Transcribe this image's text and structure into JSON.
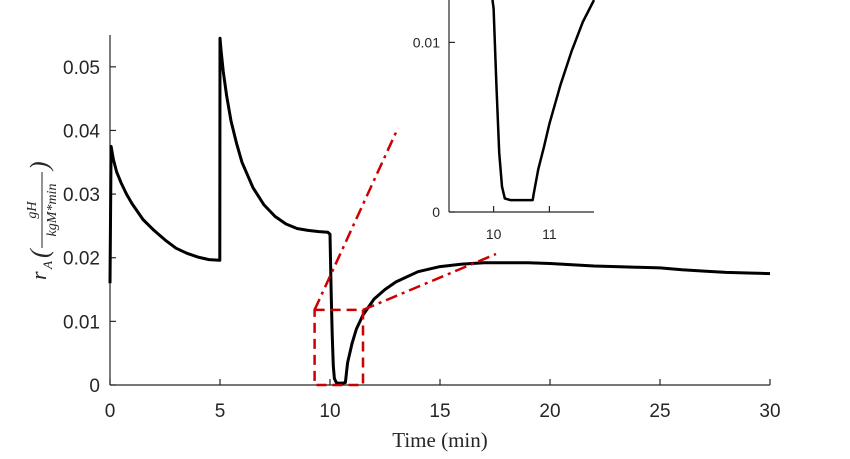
{
  "chart_data": [
    {
      "type": "line",
      "xlabel": "Time (min)",
      "ylabel": {
        "symbol": "r",
        "subscript": "A",
        "numerator": "gH",
        "denominator": "kgM*min"
      },
      "xlim": [
        0,
        30
      ],
      "ylim": [
        0,
        0.055
      ],
      "xticks": [
        "0",
        "5",
        "10",
        "15",
        "20",
        "25",
        "30"
      ],
      "yticks": [
        "0",
        "0.01",
        "0.02",
        "0.03",
        "0.04",
        "0.05"
      ],
      "grid": false,
      "series": [
        {
          "color": "#000000",
          "x": [
            0,
            0.05,
            0.15,
            0.3,
            0.5,
            0.75,
            1,
            1.5,
            2,
            2.5,
            3,
            3.5,
            4,
            4.5,
            4.99,
            5.0,
            5.05,
            5.15,
            5.3,
            5.5,
            5.75,
            6,
            6.5,
            7,
            7.5,
            8,
            8.5,
            9,
            9.5,
            9.9,
            10.0,
            10.05,
            10.1,
            10.15,
            10.2,
            10.3,
            10.4,
            10.5,
            10.6,
            10.7,
            10.75,
            10.8,
            10.9,
            11,
            11.2,
            11.5,
            12,
            12.5,
            13,
            14,
            15,
            16,
            17,
            18,
            19,
            20,
            21,
            22,
            23,
            24,
            25,
            26,
            27,
            28,
            29,
            30
          ],
          "y": [
            0.016,
            0.0375,
            0.0355,
            0.0335,
            0.0318,
            0.03,
            0.0285,
            0.026,
            0.0243,
            0.0228,
            0.0215,
            0.0207,
            0.0201,
            0.0197,
            0.0196,
            0.0545,
            0.0525,
            0.0492,
            0.0455,
            0.0415,
            0.038,
            0.035,
            0.031,
            0.0283,
            0.0265,
            0.0253,
            0.0246,
            0.0243,
            0.0241,
            0.024,
            0.0237,
            0.015,
            0.008,
            0.003,
            0.001,
            0.0003,
            0.0003,
            0.0003,
            0.0003,
            0.0004,
            0.002,
            0.0035,
            0.005,
            0.0065,
            0.0088,
            0.011,
            0.0135,
            0.015,
            0.0162,
            0.0178,
            0.0186,
            0.019,
            0.0192,
            0.0192,
            0.0192,
            0.0191,
            0.0189,
            0.0187,
            0.0186,
            0.0185,
            0.0184,
            0.0181,
            0.0179,
            0.0177,
            0.0176,
            0.0175
          ]
        }
      ],
      "zoom_box": {
        "x": [
          9.3,
          11.5
        ],
        "y": [
          0,
          0.0118
        ],
        "color": "#cc0000"
      }
    },
    {
      "type": "line",
      "role": "inset",
      "xlim": [
        9.2,
        11.8
      ],
      "ylim": [
        0,
        0.0125
      ],
      "xticks": [
        "10",
        "11"
      ],
      "yticks": [
        "0",
        "0.01"
      ],
      "grid": false,
      "series": [
        {
          "color": "#000000",
          "x": [
            9.98,
            10.0,
            10.05,
            10.1,
            10.15,
            10.2,
            10.3,
            10.4,
            10.5,
            10.6,
            10.7,
            10.72,
            10.8,
            10.9,
            11,
            11.2,
            11.4,
            11.6,
            11.8
          ],
          "y": [
            0.013,
            0.012,
            0.0075,
            0.0035,
            0.0015,
            0.0008,
            0.0007,
            0.0007,
            0.0007,
            0.0007,
            0.0007,
            0.0011,
            0.0025,
            0.0038,
            0.0052,
            0.0075,
            0.0095,
            0.0112,
            0.0127
          ]
        }
      ]
    }
  ]
}
